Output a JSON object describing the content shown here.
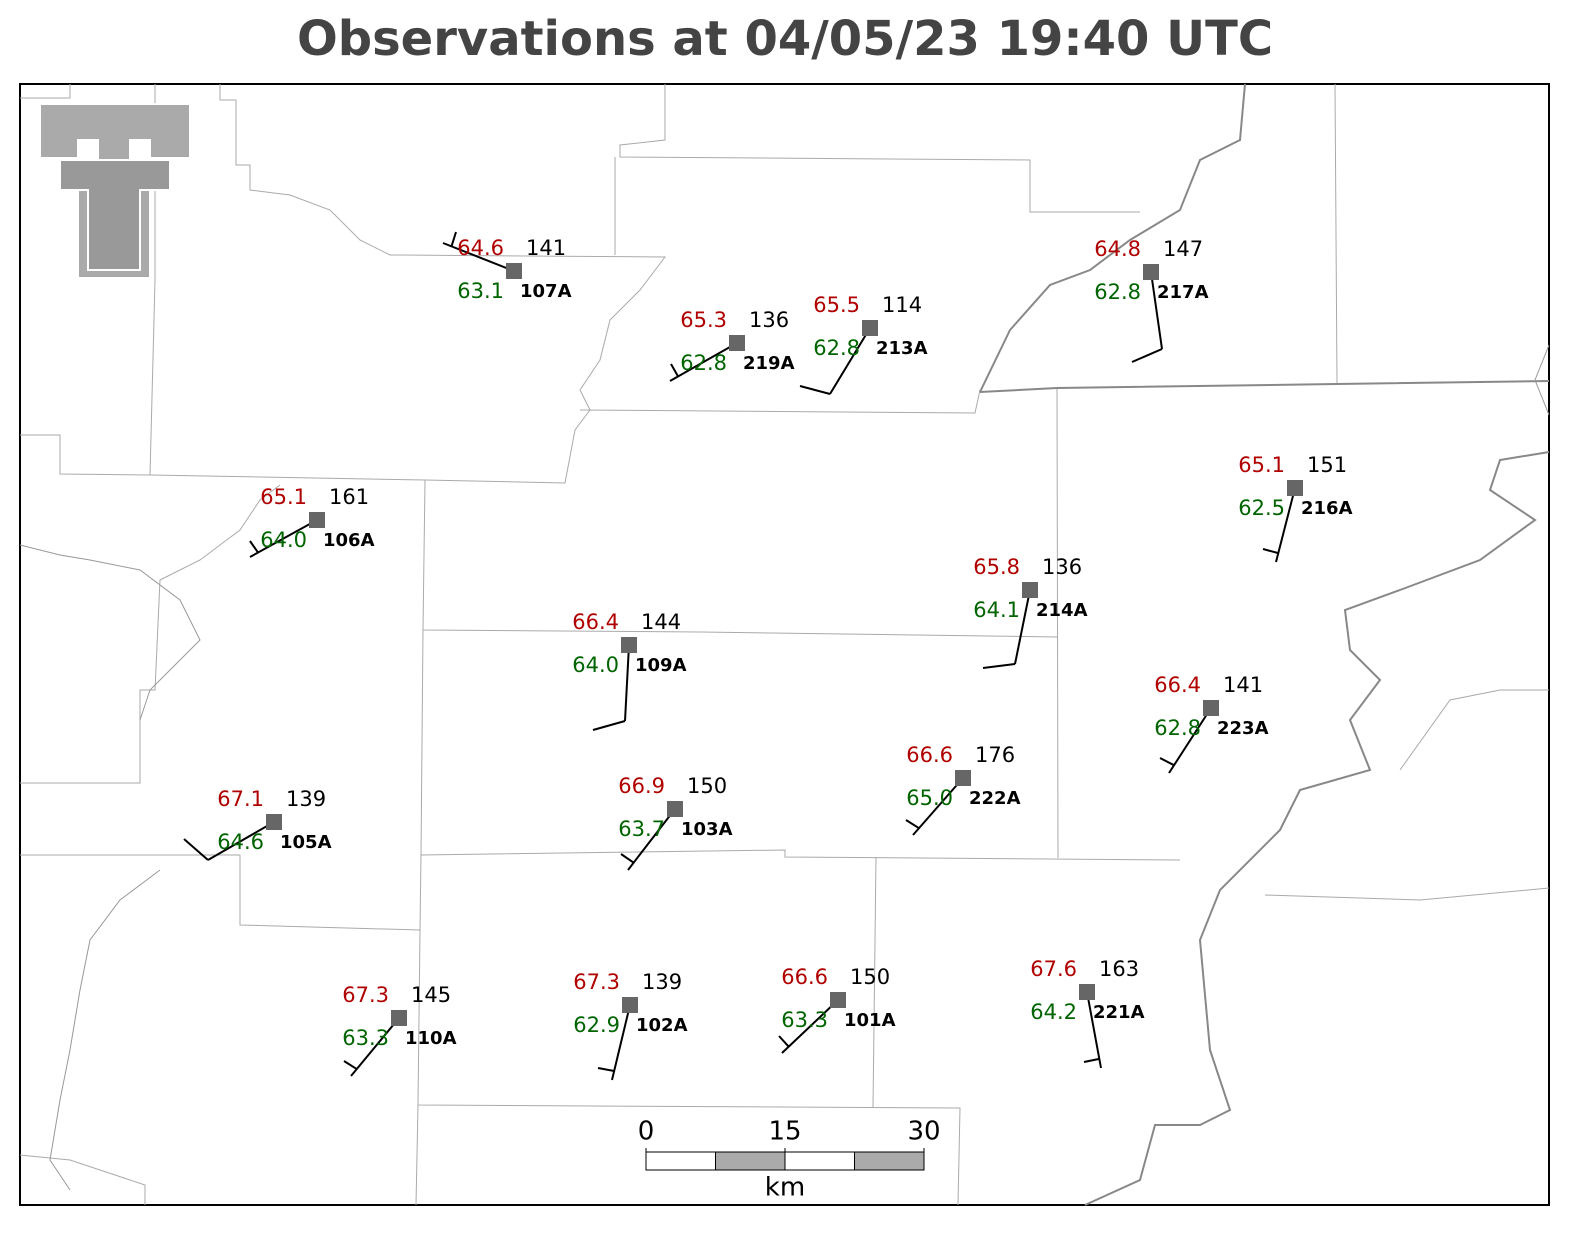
{
  "title": "Observations at 04/05/23 19:40 UTC",
  "stations": [
    {
      "id": "107A",
      "temperature": "64.6",
      "dewpoint": "63.1",
      "pressure": 141
    },
    {
      "id": "219A",
      "temperature": "65.3",
      "dewpoint": "62.8",
      "pressure": 136
    },
    {
      "id": "213A",
      "temperature": "65.5",
      "dewpoint": "62.8",
      "pressure": 114
    },
    {
      "id": "217A",
      "temperature": "64.8",
      "dewpoint": "62.8",
      "pressure": 147
    },
    {
      "id": "106A",
      "temperature": "65.1",
      "dewpoint": "64.0",
      "pressure": 161
    },
    {
      "id": "216A",
      "temperature": "65.1",
      "dewpoint": "62.5",
      "pressure": 151
    },
    {
      "id": "214A",
      "temperature": "65.8",
      "dewpoint": "64.1",
      "pressure": 136
    },
    {
      "id": "109A",
      "temperature": "66.4",
      "dewpoint": "64.0",
      "pressure": 144
    },
    {
      "id": "223A",
      "temperature": "66.4",
      "dewpoint": "62.8",
      "pressure": 141
    },
    {
      "id": "222A",
      "temperature": "66.6",
      "dewpoint": "65.0",
      "pressure": 176
    },
    {
      "id": "103A",
      "temperature": "66.9",
      "dewpoint": "63.7",
      "pressure": 150
    },
    {
      "id": "105A",
      "temperature": "67.1",
      "dewpoint": "64.6",
      "pressure": 139
    },
    {
      "id": "110A",
      "temperature": "67.3",
      "dewpoint": "63.3",
      "pressure": 145
    },
    {
      "id": "102A",
      "temperature": "67.3",
      "dewpoint": "62.9",
      "pressure": 139
    },
    {
      "id": "101A",
      "temperature": "66.6",
      "dewpoint": "63.3",
      "pressure": 150
    },
    {
      "id": "221A",
      "temperature": "67.6",
      "dewpoint": "64.2",
      "pressure": 163
    }
  ],
  "scale_bar": {
    "ticks": [
      0,
      15,
      30
    ],
    "unit": "km"
  }
}
